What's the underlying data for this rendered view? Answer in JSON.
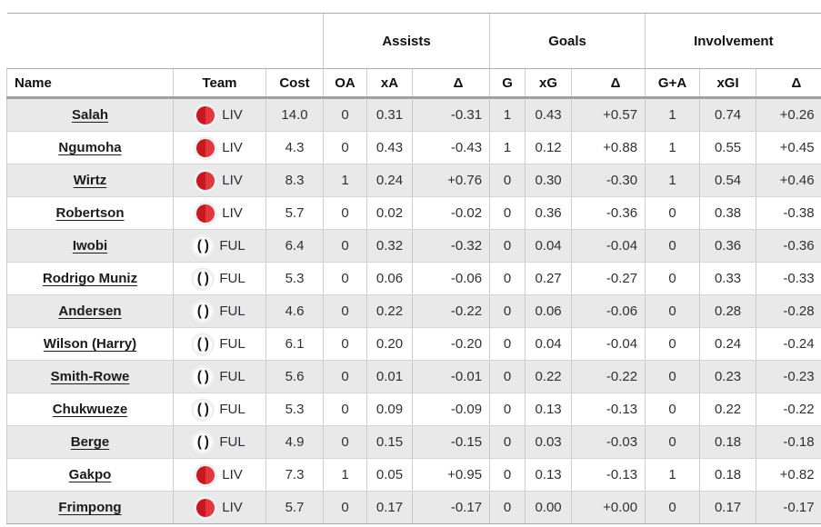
{
  "table": {
    "groups": [
      {
        "label": "Assists"
      },
      {
        "label": "Goals"
      },
      {
        "label": "Involvement"
      }
    ],
    "columns": [
      "Name",
      "Team",
      "Cost",
      "OA",
      "xA",
      "Δ",
      "G",
      "xG",
      "Δ",
      "G+A",
      "xGI",
      "Δ"
    ],
    "rows": [
      {
        "name": "Salah",
        "team": "LIV",
        "cost": "14.0",
        "values": [
          "0",
          "0.31",
          "-0.31",
          "1",
          "0.43",
          "+0.57",
          "1",
          "0.74",
          "+0.26"
        ]
      },
      {
        "name": "Ngumoha",
        "team": "LIV",
        "cost": "4.3",
        "values": [
          "0",
          "0.43",
          "-0.43",
          "1",
          "0.12",
          "+0.88",
          "1",
          "0.55",
          "+0.45"
        ]
      },
      {
        "name": "Wirtz",
        "team": "LIV",
        "cost": "8.3",
        "values": [
          "1",
          "0.24",
          "+0.76",
          "0",
          "0.30",
          "-0.30",
          "1",
          "0.54",
          "+0.46"
        ]
      },
      {
        "name": "Robertson",
        "team": "LIV",
        "cost": "5.7",
        "values": [
          "0",
          "0.02",
          "-0.02",
          "0",
          "0.36",
          "-0.36",
          "0",
          "0.38",
          "-0.38"
        ]
      },
      {
        "name": "Iwobi",
        "team": "FUL",
        "cost": "6.4",
        "values": [
          "0",
          "0.32",
          "-0.32",
          "0",
          "0.04",
          "-0.04",
          "0",
          "0.36",
          "-0.36"
        ]
      },
      {
        "name": "Rodrigo Muniz",
        "team": "FUL",
        "cost": "5.3",
        "values": [
          "0",
          "0.06",
          "-0.06",
          "0",
          "0.27",
          "-0.27",
          "0",
          "0.33",
          "-0.33"
        ]
      },
      {
        "name": "Andersen",
        "team": "FUL",
        "cost": "4.6",
        "values": [
          "0",
          "0.22",
          "-0.22",
          "0",
          "0.06",
          "-0.06",
          "0",
          "0.28",
          "-0.28"
        ]
      },
      {
        "name": "Wilson (Harry)",
        "team": "FUL",
        "cost": "6.1",
        "values": [
          "0",
          "0.20",
          "-0.20",
          "0",
          "0.04",
          "-0.04",
          "0",
          "0.24",
          "-0.24"
        ]
      },
      {
        "name": "Smith-Rowe",
        "team": "FUL",
        "cost": "5.6",
        "values": [
          "0",
          "0.01",
          "-0.01",
          "0",
          "0.22",
          "-0.22",
          "0",
          "0.23",
          "-0.23"
        ]
      },
      {
        "name": "Chukwueze",
        "team": "FUL",
        "cost": "5.3",
        "values": [
          "0",
          "0.09",
          "-0.09",
          "0",
          "0.13",
          "-0.13",
          "0",
          "0.22",
          "-0.22"
        ]
      },
      {
        "name": "Berge",
        "team": "FUL",
        "cost": "4.9",
        "values": [
          "0",
          "0.15",
          "-0.15",
          "0",
          "0.03",
          "-0.03",
          "0",
          "0.18",
          "-0.18"
        ]
      },
      {
        "name": "Gakpo",
        "team": "LIV",
        "cost": "7.3",
        "values": [
          "1",
          "0.05",
          "+0.95",
          "0",
          "0.13",
          "-0.13",
          "1",
          "0.18",
          "+0.82"
        ]
      },
      {
        "name": "Frimpong",
        "team": "LIV",
        "cost": "5.7",
        "values": [
          "0",
          "0.17",
          "-0.17",
          "0",
          "0.00",
          "+0.00",
          "0",
          "0.17",
          "-0.17"
        ]
      }
    ]
  },
  "colors": {
    "stripe_row": "#e9e9e9",
    "liv_badge_left": "#c6191f",
    "liv_badge_right": "#e0383e",
    "ful_badge_bg": "#ffffff",
    "ful_badge_glyph": "#141414",
    "border_light": "#cccccc",
    "border_header_thick": "#a0a0a0",
    "border_outer": "#a9a9a9",
    "text": "#303030",
    "link_text": "#1b1b1b"
  }
}
